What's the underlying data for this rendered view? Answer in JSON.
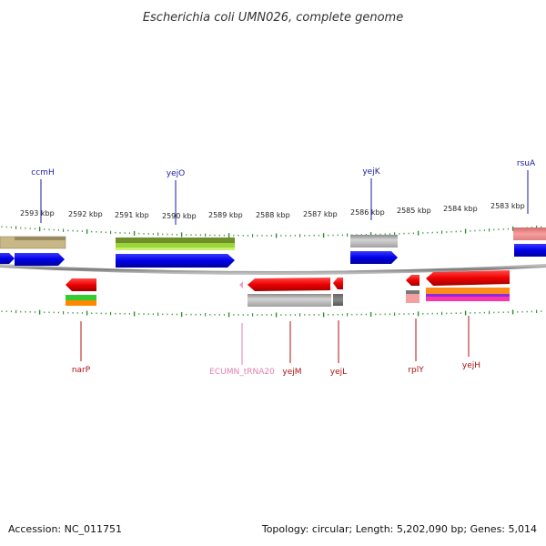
{
  "title": "Escherichia coli UMN026, complete genome",
  "footer": {
    "accession": "Accession: NC_011751",
    "summary": "Topology: circular; Length: 5,202,090 bp; Genes: 5,014"
  },
  "colors": {
    "backbone": "#8a8a8a",
    "ticks": "#2e8b2e",
    "label_top": "#1a1aa6",
    "label_bottom": "#b01010",
    "label_trna": "#e080b0"
  },
  "scale_labels": [
    {
      "text": "2593 kbp",
      "kbp": 2593
    },
    {
      "text": "2592 kbp",
      "kbp": 2592
    },
    {
      "text": "2591 kbp",
      "kbp": 2591
    },
    {
      "text": "2590 kbp",
      "kbp": 2590
    },
    {
      "text": "2589 kbp",
      "kbp": 2589
    },
    {
      "text": "2588 kbp",
      "kbp": 2588
    },
    {
      "text": "2587 kbp",
      "kbp": 2587
    },
    {
      "text": "2586 kbp",
      "kbp": 2586
    },
    {
      "text": "2585 kbp",
      "kbp": 2585
    },
    {
      "text": "2584 kbp",
      "kbp": 2584
    },
    {
      "text": "2583 kbp",
      "kbp": 2583
    }
  ],
  "genes_top": [
    {
      "name": "ccmH"
    },
    {
      "name": "yejO"
    },
    {
      "name": "yejK"
    },
    {
      "name": "rsuA"
    }
  ],
  "genes_bottom": [
    {
      "name": "narP"
    },
    {
      "name": "ECUMN_tRNA20"
    },
    {
      "name": "yejM"
    },
    {
      "name": "yejL"
    },
    {
      "name": "rplY"
    },
    {
      "name": "yejH"
    }
  ]
}
